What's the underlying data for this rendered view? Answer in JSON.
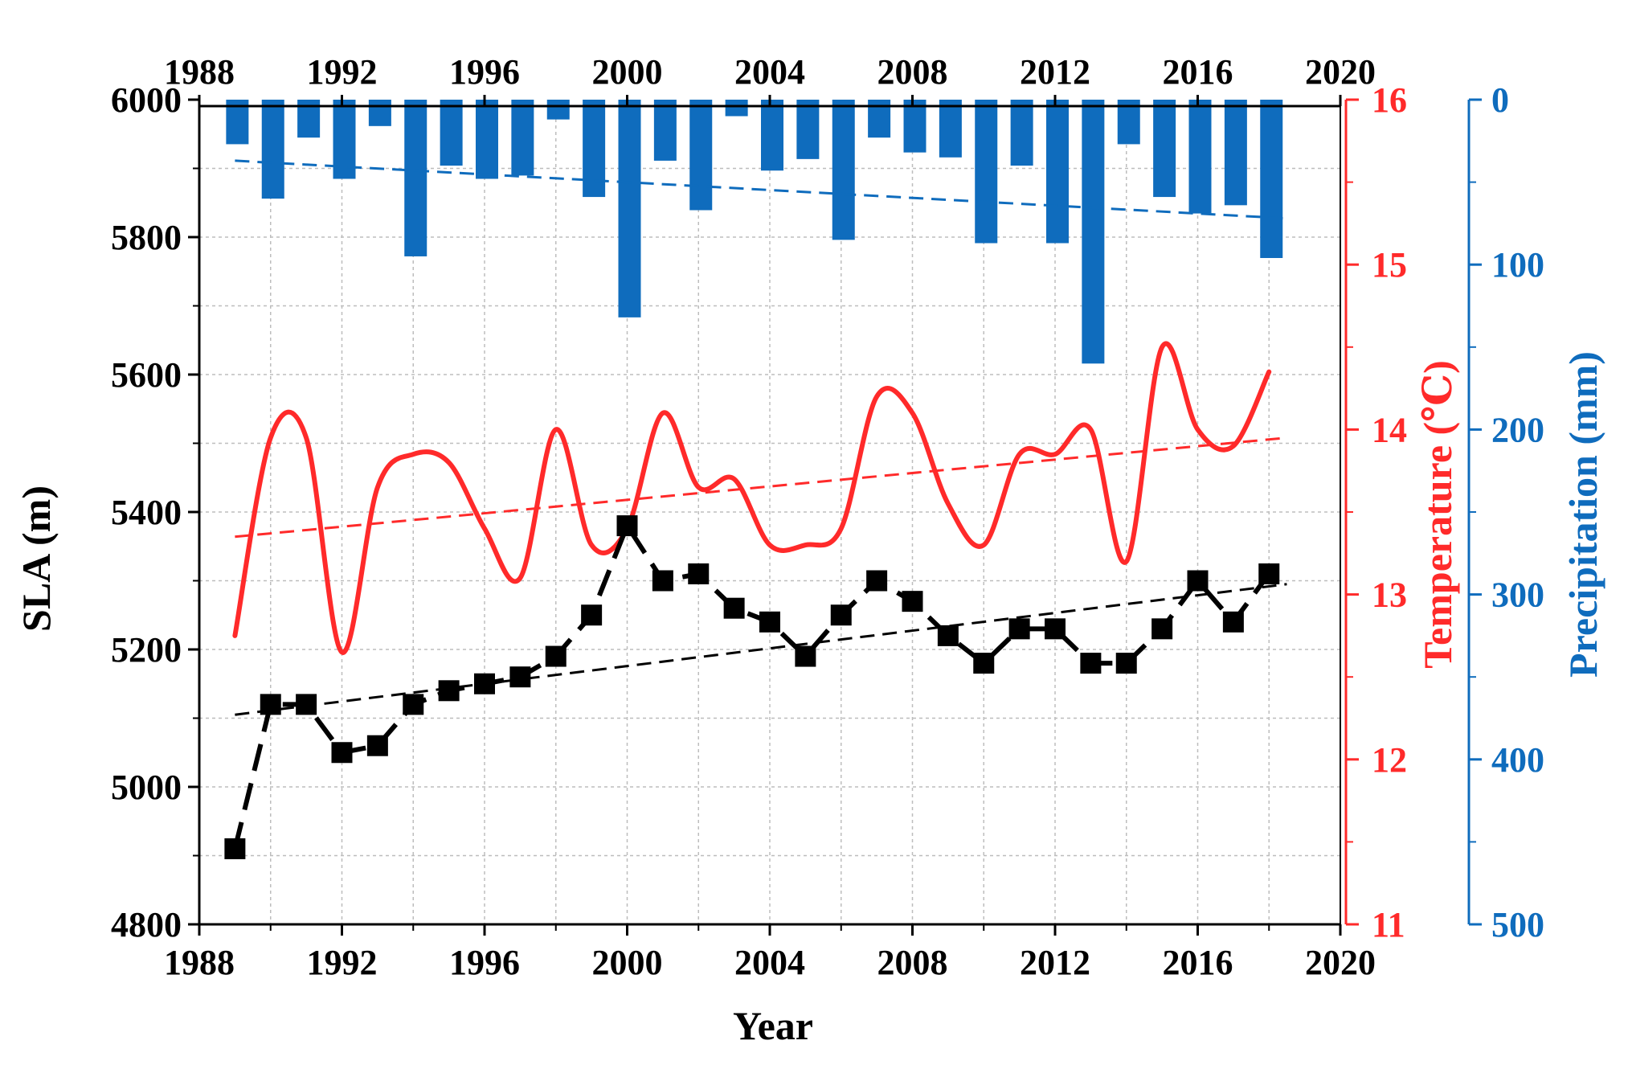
{
  "chart_data": {
    "type": "line",
    "xlabel": "Year",
    "x_ticks": [
      "1988",
      "1992",
      "1996",
      "2000",
      "2004",
      "2008",
      "2012",
      "2016",
      "2020"
    ],
    "xlim": [
      1988,
      2020
    ],
    "axes": {
      "sla": {
        "label": "SLA (m)",
        "ylim": [
          4800,
          6000
        ],
        "ticks": [
          "4800",
          "5000",
          "5200",
          "5400",
          "5600",
          "5800",
          "6000"
        ],
        "color": "#000000"
      },
      "temperature": {
        "label": "Temperature (℃)",
        "ylim": [
          11,
          16
        ],
        "ticks": [
          "11",
          "12",
          "13",
          "14",
          "15",
          "16"
        ],
        "color": "#ff2a2a"
      },
      "precipitation": {
        "label": "Precipitation (mm)",
        "ylim": [
          0,
          500
        ],
        "inverted": true,
        "ticks": [
          "0",
          "100",
          "200",
          "300",
          "400",
          "500"
        ],
        "color": "#0f6cbd"
      }
    },
    "series": [
      {
        "name": "SLA",
        "axis": "sla",
        "style": "dashed-line-with-squares",
        "color": "#000000",
        "x": [
          1989,
          1990,
          1991,
          1992,
          1993,
          1994,
          1995,
          1996,
          1997,
          1998,
          1999,
          2000,
          2001,
          2002,
          2003,
          2004,
          2005,
          2006,
          2007,
          2008,
          2009,
          2010,
          2011,
          2012,
          2013,
          2014,
          2015,
          2016,
          2017,
          2018
        ],
        "values": [
          4910,
          5120,
          5120,
          5050,
          5060,
          5120,
          5140,
          5150,
          5160,
          5190,
          5250,
          5380,
          5300,
          5310,
          5260,
          5240,
          5190,
          5250,
          5300,
          5270,
          5220,
          5180,
          5230,
          5230,
          5180,
          5180,
          5230,
          5300,
          5240,
          5310
        ]
      },
      {
        "name": "Temperature",
        "axis": "temperature",
        "style": "smooth-line",
        "color": "#ff2a2a",
        "x": [
          1989,
          1990,
          1991,
          1992,
          1993,
          1994,
          1995,
          1996,
          1997,
          1998,
          1999,
          2000,
          2001,
          2002,
          2003,
          2004,
          2005,
          2006,
          2007,
          2008,
          2009,
          2010,
          2011,
          2012,
          2013,
          2014,
          2015,
          2016,
          2017,
          2018
        ],
        "values": [
          12.75,
          13.95,
          13.95,
          12.65,
          13.65,
          13.85,
          13.8,
          13.4,
          13.1,
          14.0,
          13.3,
          13.4,
          14.1,
          13.65,
          13.7,
          13.3,
          13.3,
          13.4,
          14.2,
          14.1,
          13.55,
          13.3,
          13.85,
          13.85,
          14.0,
          13.2,
          14.5,
          14.0,
          13.9,
          14.35
        ]
      },
      {
        "name": "Precipitation",
        "axis": "precipitation",
        "style": "bar",
        "color": "#0f6cbd",
        "x": [
          1989,
          1990,
          1991,
          1992,
          1993,
          1994,
          1995,
          1996,
          1997,
          1998,
          1999,
          2000,
          2001,
          2002,
          2003,
          2004,
          2005,
          2006,
          2007,
          2008,
          2009,
          2010,
          2011,
          2012,
          2013,
          2014,
          2015,
          2016,
          2017,
          2018
        ],
        "values": [
          27,
          60,
          23,
          48,
          16,
          95,
          40,
          48,
          46,
          12,
          59,
          132,
          37,
          67,
          10,
          43,
          36,
          85,
          23,
          32,
          35,
          87,
          40,
          87,
          160,
          27,
          59,
          69,
          64,
          96
        ]
      }
    ],
    "trend_lines": [
      {
        "name": "SLA trend",
        "axis": "sla",
        "color": "#000000",
        "x": [
          1989,
          2018.5
        ],
        "values": [
          5105,
          5295
        ]
      },
      {
        "name": "Temperature trend",
        "axis": "temperature",
        "color": "#ff2a2a",
        "x": [
          1989,
          2018.5
        ],
        "values": [
          13.35,
          13.95
        ]
      },
      {
        "name": "Precipitation trend",
        "axis": "precipitation",
        "color": "#0f6cbd",
        "x": [
          1989,
          2018.5
        ],
        "values": [
          37,
          72
        ]
      }
    ]
  }
}
